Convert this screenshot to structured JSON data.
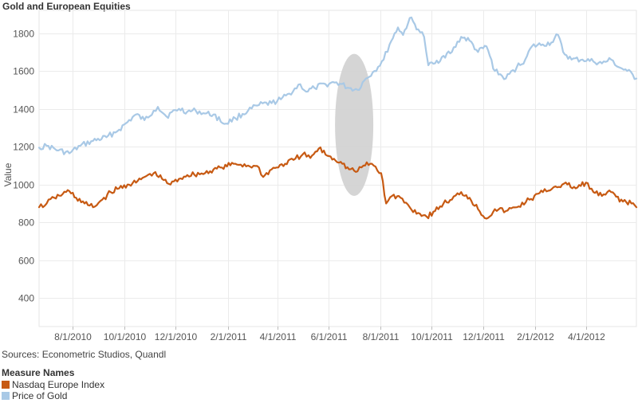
{
  "title": "Gold and European Equities",
  "sources": "Sources: Econometric Studios, Quandl",
  "legend": {
    "title": "Measure Names",
    "items": [
      {
        "label": "Nasdaq Europe Index",
        "color": "#c75a13"
      },
      {
        "label": "Price of Gold",
        "color": "#a9c9e6"
      }
    ]
  },
  "chart_data": {
    "type": "line",
    "title": "Gold and European Equities",
    "ylabel": "Value",
    "xlabel": "",
    "ylim": [
      250,
      1920
    ],
    "xlim": [
      "2010-06-22",
      "2012-05-31"
    ],
    "yticks": [
      400,
      600,
      800,
      1000,
      1200,
      1400,
      1600,
      1800
    ],
    "xticks": [
      "8/1/2010",
      "10/1/2010",
      "12/1/2010",
      "2/1/2011",
      "4/1/2011",
      "6/1/2011",
      "8/1/2011",
      "10/1/2011",
      "12/1/2011",
      "2/1/2012",
      "4/1/2012"
    ],
    "grid": true,
    "legend_position": "bottom-left",
    "highlight": {
      "shape": "ellipse",
      "x_center": "2011-07-01",
      "y_range": [
        940,
        1690
      ]
    },
    "series": [
      {
        "name": "Price of Gold",
        "color": "#a9c9e6",
        "points": [
          [
            "2010-06-22",
            1195
          ],
          [
            "2010-07-01",
            1205
          ],
          [
            "2010-07-15",
            1180
          ],
          [
            "2010-07-28",
            1165
          ],
          [
            "2010-08-10",
            1205
          ],
          [
            "2010-08-25",
            1230
          ],
          [
            "2010-09-10",
            1250
          ],
          [
            "2010-09-25",
            1290
          ],
          [
            "2010-10-05",
            1330
          ],
          [
            "2010-10-15",
            1370
          ],
          [
            "2010-10-25",
            1340
          ],
          [
            "2010-11-05",
            1390
          ],
          [
            "2010-11-10",
            1410
          ],
          [
            "2010-11-20",
            1360
          ],
          [
            "2010-12-05",
            1400
          ],
          [
            "2010-12-15",
            1385
          ],
          [
            "2010-12-25",
            1390
          ],
          [
            "2011-01-05",
            1375
          ],
          [
            "2011-01-15",
            1370
          ],
          [
            "2011-01-28",
            1320
          ],
          [
            "2011-02-10",
            1350
          ],
          [
            "2011-02-25",
            1390
          ],
          [
            "2011-03-10",
            1420
          ],
          [
            "2011-03-25",
            1430
          ],
          [
            "2011-04-05",
            1450
          ],
          [
            "2011-04-15",
            1480
          ],
          [
            "2011-04-28",
            1530
          ],
          [
            "2011-05-05",
            1490
          ],
          [
            "2011-05-15",
            1510
          ],
          [
            "2011-05-28",
            1530
          ],
          [
            "2011-06-10",
            1540
          ],
          [
            "2011-06-25",
            1510
          ],
          [
            "2011-07-05",
            1500
          ],
          [
            "2011-07-15",
            1560
          ],
          [
            "2011-07-25",
            1600
          ],
          [
            "2011-08-05",
            1660
          ],
          [
            "2011-08-12",
            1740
          ],
          [
            "2011-08-22",
            1830
          ],
          [
            "2011-08-28",
            1790
          ],
          [
            "2011-09-05",
            1880
          ],
          [
            "2011-09-15",
            1820
          ],
          [
            "2011-09-22",
            1780
          ],
          [
            "2011-09-27",
            1630
          ],
          [
            "2011-10-05",
            1640
          ],
          [
            "2011-10-15",
            1680
          ],
          [
            "2011-10-25",
            1700
          ],
          [
            "2011-11-05",
            1780
          ],
          [
            "2011-11-15",
            1760
          ],
          [
            "2011-11-25",
            1700
          ],
          [
            "2011-12-05",
            1730
          ],
          [
            "2011-12-15",
            1600
          ],
          [
            "2011-12-28",
            1560
          ],
          [
            "2012-01-10",
            1620
          ],
          [
            "2012-01-20",
            1660
          ],
          [
            "2012-01-28",
            1730
          ],
          [
            "2012-02-10",
            1740
          ],
          [
            "2012-02-20",
            1750
          ],
          [
            "2012-02-28",
            1790
          ],
          [
            "2012-03-05",
            1700
          ],
          [
            "2012-03-15",
            1660
          ],
          [
            "2012-03-28",
            1660
          ],
          [
            "2012-04-10",
            1650
          ],
          [
            "2012-04-20",
            1640
          ],
          [
            "2012-05-01",
            1660
          ],
          [
            "2012-05-10",
            1620
          ],
          [
            "2012-05-20",
            1600
          ],
          [
            "2012-05-31",
            1560
          ]
        ]
      },
      {
        "name": "Nasdaq Europe Index",
        "color": "#c75a13",
        "points": [
          [
            "2010-06-22",
            880
          ],
          [
            "2010-07-01",
            900
          ],
          [
            "2010-07-10",
            930
          ],
          [
            "2010-07-20",
            950
          ],
          [
            "2010-07-28",
            965
          ],
          [
            "2010-08-05",
            930
          ],
          [
            "2010-08-15",
            900
          ],
          [
            "2010-08-25",
            880
          ],
          [
            "2010-09-05",
            920
          ],
          [
            "2010-09-15",
            960
          ],
          [
            "2010-09-25",
            980
          ],
          [
            "2010-10-05",
            1000
          ],
          [
            "2010-10-15",
            1010
          ],
          [
            "2010-10-25",
            1040
          ],
          [
            "2010-11-05",
            1060
          ],
          [
            "2010-11-15",
            1030
          ],
          [
            "2010-11-25",
            1000
          ],
          [
            "2010-12-05",
            1030
          ],
          [
            "2010-12-15",
            1050
          ],
          [
            "2011-01-05",
            1060
          ],
          [
            "2011-01-15",
            1080
          ],
          [
            "2011-01-25",
            1090
          ],
          [
            "2011-02-10",
            1110
          ],
          [
            "2011-02-25",
            1100
          ],
          [
            "2011-03-10",
            1090
          ],
          [
            "2011-03-15",
            1040
          ],
          [
            "2011-03-25",
            1080
          ],
          [
            "2011-04-10",
            1110
          ],
          [
            "2011-04-20",
            1130
          ],
          [
            "2011-05-01",
            1160
          ],
          [
            "2011-05-10",
            1140
          ],
          [
            "2011-05-20",
            1190
          ],
          [
            "2011-06-01",
            1150
          ],
          [
            "2011-06-15",
            1120
          ],
          [
            "2011-06-25",
            1080
          ],
          [
            "2011-07-05",
            1070
          ],
          [
            "2011-07-12",
            1100
          ],
          [
            "2011-07-22",
            1110
          ],
          [
            "2011-08-02",
            1060
          ],
          [
            "2011-08-08",
            900
          ],
          [
            "2011-08-15",
            940
          ],
          [
            "2011-08-25",
            930
          ],
          [
            "2011-09-05",
            880
          ],
          [
            "2011-09-15",
            850
          ],
          [
            "2011-09-25",
            830
          ],
          [
            "2011-10-05",
            860
          ],
          [
            "2011-10-15",
            900
          ],
          [
            "2011-10-25",
            920
          ],
          [
            "2011-11-05",
            960
          ],
          [
            "2011-11-15",
            930
          ],
          [
            "2011-11-25",
            870
          ],
          [
            "2011-12-05",
            820
          ],
          [
            "2011-12-15",
            870
          ],
          [
            "2011-12-28",
            860
          ],
          [
            "2012-01-10",
            880
          ],
          [
            "2012-01-25",
            920
          ],
          [
            "2012-02-10",
            960
          ],
          [
            "2012-02-25",
            990
          ],
          [
            "2012-03-10",
            1000
          ],
          [
            "2012-03-20",
            980
          ],
          [
            "2012-04-01",
            1010
          ],
          [
            "2012-04-10",
            960
          ],
          [
            "2012-04-20",
            940
          ],
          [
            "2012-05-01",
            960
          ],
          [
            "2012-05-15",
            910
          ],
          [
            "2012-05-25",
            900
          ],
          [
            "2012-05-31",
            880
          ]
        ]
      }
    ]
  }
}
